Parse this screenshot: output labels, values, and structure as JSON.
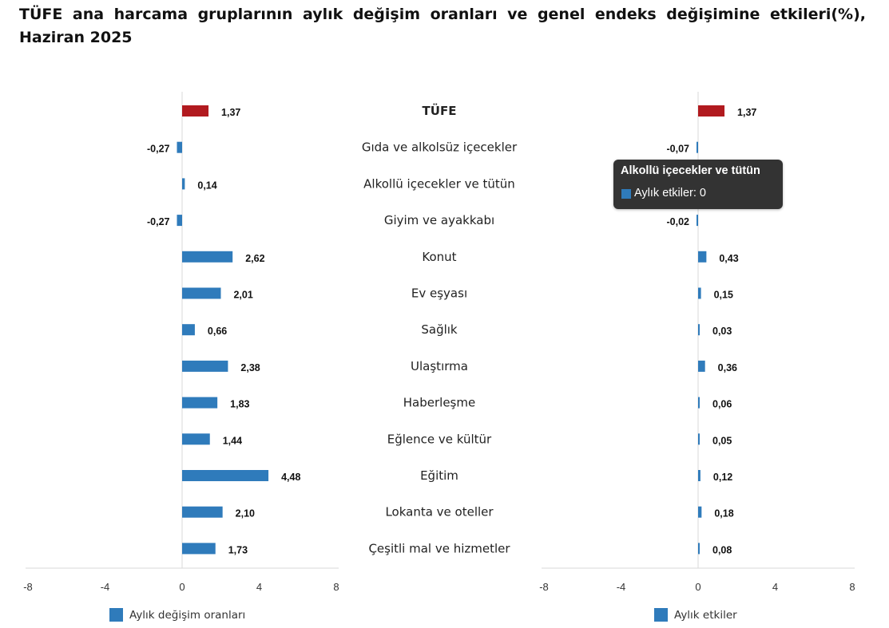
{
  "title": "TÜFE ana harcama gruplarının aylık değişim oranları ve genel endeks değişimine etkileri(%), Haziran 2025",
  "colors": {
    "highlight": "#b11a1f",
    "series": "#2f7bbb",
    "axis": "#d9d9d9",
    "tooltip_bg": "#333333"
  },
  "chart_data": [
    {
      "type": "bar",
      "orientation": "horizontal",
      "categories": [
        "TÜFE",
        "Gıda ve alkolsüz içecekler",
        "Alkollü içecekler ve tütün",
        "Giyim ve ayakkabı",
        "Konut",
        "Ev eşyası",
        "Sağlık",
        "Ulaştırma",
        "Haberleşme",
        "Eğlence ve kültür",
        "Eğitim",
        "Lokanta ve oteller",
        "Çeşitli mal ve hizmetler"
      ],
      "series": [
        {
          "name": "Aylık değişim oranları",
          "values": [
            1.37,
            -0.27,
            0.14,
            -0.27,
            2.62,
            2.01,
            0.66,
            2.38,
            1.83,
            1.44,
            4.48,
            2.1,
            1.73
          ],
          "value_labels": [
            "1,37",
            "-0,27",
            "0,14",
            "-0,27",
            "2,62",
            "2,01",
            "0,66",
            "2,38",
            "1,83",
            "1,44",
            "4,48",
            "2,10",
            "1,73"
          ]
        }
      ],
      "xlim": [
        -8,
        8
      ],
      "xticks": [
        "-8",
        "-4",
        "0",
        "4",
        "8"
      ],
      "grid": false,
      "legend": "bottom"
    },
    {
      "type": "bar",
      "orientation": "horizontal",
      "categories": [
        "TÜFE",
        "Gıda ve alkolsüz içecekler",
        "Alkollü içecekler ve tütün",
        "Giyim ve ayakkabı",
        "Konut",
        "Ev eşyası",
        "Sağlık",
        "Ulaştırma",
        "Haberleşme",
        "Eğlence ve kültür",
        "Eğitim",
        "Lokanta ve oteller",
        "Çeşitli mal ve hizmetler"
      ],
      "series": [
        {
          "name": "Aylık etkiler",
          "values": [
            1.37,
            -0.07,
            0.0,
            -0.02,
            0.43,
            0.15,
            0.03,
            0.36,
            0.06,
            0.05,
            0.12,
            0.18,
            0.08
          ],
          "value_labels": [
            "1,37",
            "-0,07",
            "0,00",
            "-0,02",
            "0,43",
            "0,15",
            "0,03",
            "0,36",
            "0,06",
            "0,05",
            "0,12",
            "0,18",
            "0,08"
          ]
        }
      ],
      "xlim": [
        -8,
        8
      ],
      "xticks": [
        "-8",
        "-4",
        "0",
        "4",
        "8"
      ],
      "grid": false,
      "legend": "bottom"
    }
  ],
  "tooltip": {
    "title": "Alkollü içecekler ve tütün",
    "text": "Aylık etkiler: 0"
  }
}
